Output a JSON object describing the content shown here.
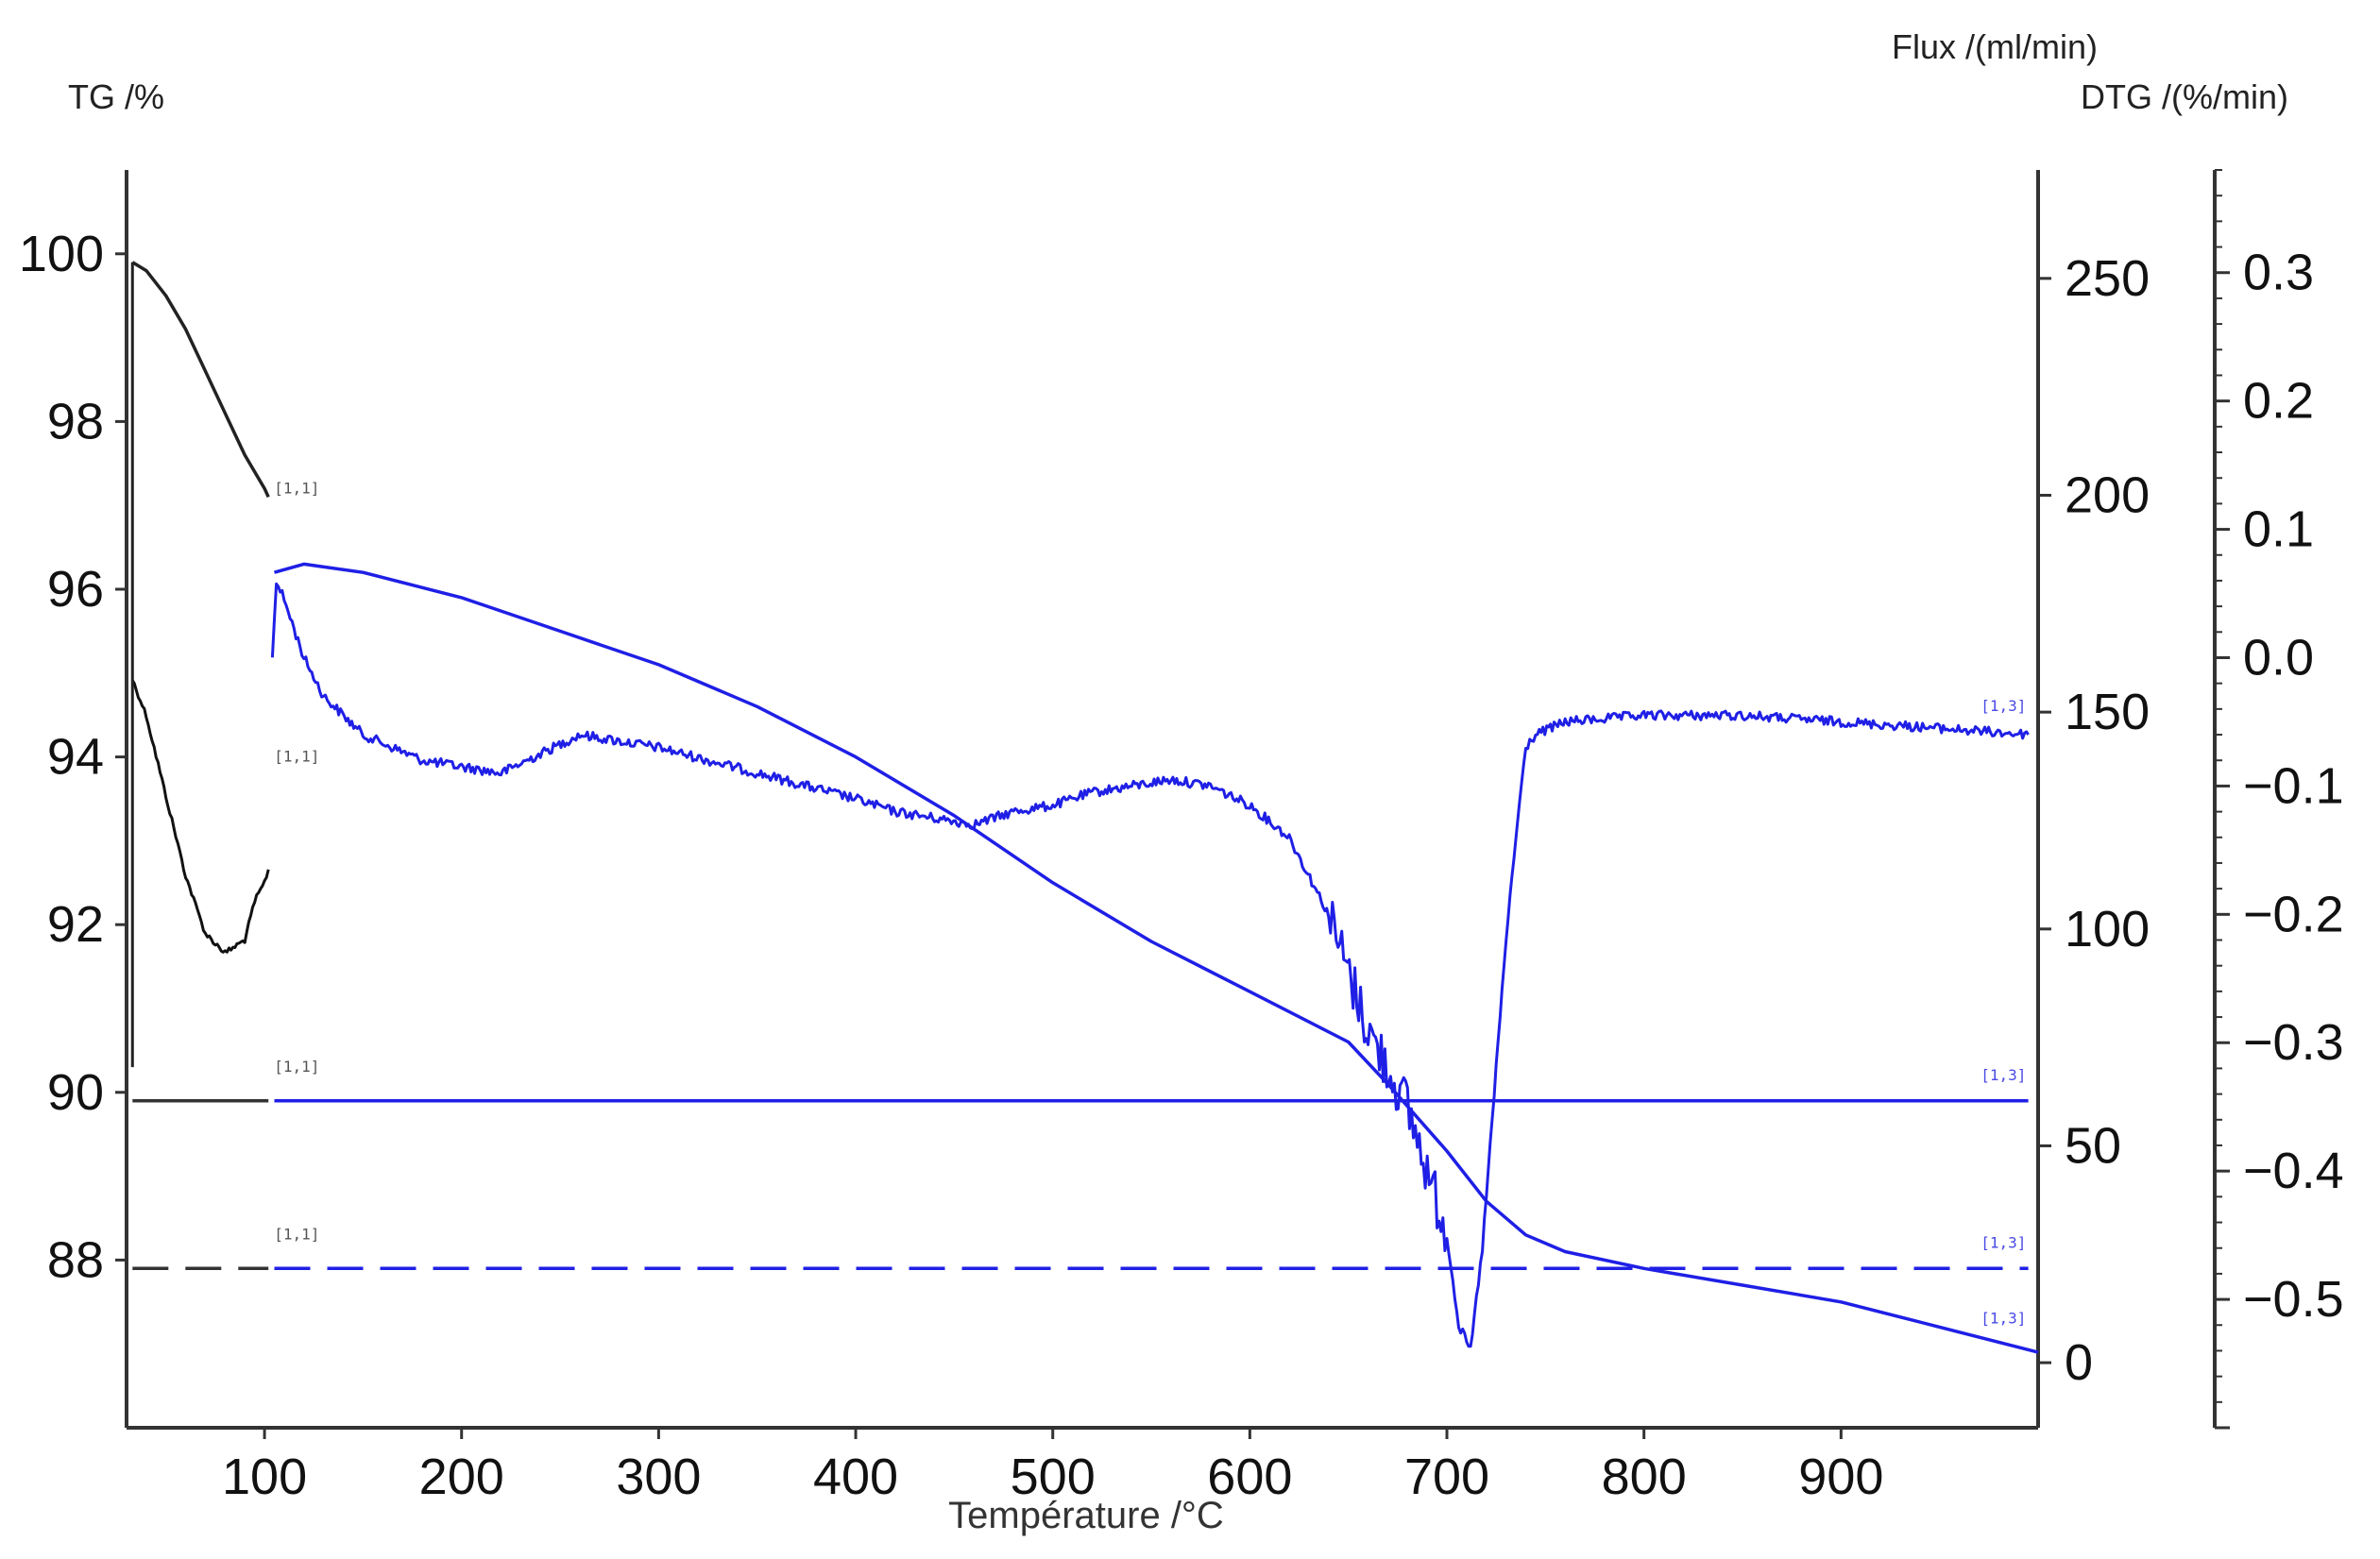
{
  "chart_data": {
    "type": "line",
    "title": "",
    "xlabel": "Température /°C",
    "x_ticks": [
      "100",
      "200",
      "300",
      "400",
      "500",
      "600",
      "700",
      "800",
      "900"
    ],
    "xlim": [
      30,
      1000
    ],
    "axes": {
      "tg": {
        "label": "TG /%",
        "ticks": [
          "100",
          "98",
          "96",
          "94",
          "92",
          "90",
          "88"
        ],
        "ylim": [
          86,
          101
        ]
      },
      "flux": {
        "label": "Flux /(ml/min)",
        "ticks": [
          "250",
          "200",
          "150",
          "100",
          "50",
          "0"
        ],
        "ylim": [
          -15,
          275
        ]
      },
      "dtg": {
        "label": "DTG /(%/min)",
        "ticks": [
          "0.3",
          "0.2",
          "0.1",
          "0.0",
          "−0.1",
          "−0.2",
          "−0.3",
          "−0.4",
          "−0.5"
        ],
        "ylim": [
          -0.6,
          0.38
        ]
      }
    },
    "series": [
      {
        "axis": "tg",
        "color": "#222222",
        "style": "solid",
        "x": [
          33,
          40,
          50,
          60,
          70,
          80,
          90,
          100,
          102
        ],
        "y": [
          99.9,
          99.8,
          99.5,
          99.1,
          98.6,
          98.1,
          97.6,
          97.2,
          97.1
        ]
      },
      {
        "axis": "dtg",
        "color": "#111111",
        "style": "noisy",
        "x": [
          33,
          40,
          50,
          60,
          70,
          80,
          90,
          95,
          100,
          102
        ],
        "y": [
          -0.017,
          -0.045,
          -0.108,
          -0.17,
          -0.215,
          -0.23,
          -0.22,
          -0.19,
          -0.175,
          -0.165
        ]
      },
      {
        "axis": "tg",
        "color": "#333333",
        "style": "solid",
        "x": [
          33,
          102
        ],
        "y": [
          89.9,
          89.9
        ]
      },
      {
        "axis": "tg",
        "color": "#333333",
        "style": "dashed",
        "x": [
          33,
          102
        ],
        "y": [
          87.9,
          87.9
        ]
      },
      {
        "axis": "tg",
        "color": "#1f1fe6",
        "style": "solid",
        "x": [
          105,
          120,
          150,
          200,
          250,
          300,
          350,
          400,
          450,
          500,
          550,
          600,
          650,
          670,
          700,
          720,
          740,
          760,
          800,
          850,
          900,
          950,
          1000
        ],
        "y": [
          96.2,
          96.3,
          96.2,
          95.9,
          95.5,
          95.1,
          94.6,
          94.0,
          93.3,
          92.5,
          91.8,
          91.2,
          90.6,
          90.1,
          89.3,
          88.7,
          88.3,
          88.1,
          87.9,
          87.7,
          87.5,
          87.2,
          86.9
        ]
      },
      {
        "axis": "dtg",
        "color": "#1f1fe6",
        "style": "noisy",
        "x": [
          104,
          106,
          110,
          120,
          130,
          150,
          180,
          200,
          220,
          240,
          260,
          280,
          300,
          350,
          400,
          420,
          440,
          460,
          480,
          500,
          520,
          540,
          560,
          580,
          600,
          620,
          640,
          660,
          680,
          690,
          700,
          706,
          712,
          718,
          722,
          726,
          730,
          735,
          740,
          745,
          760,
          800,
          850,
          900,
          950,
          995
        ],
        "y": [
          0.0,
          0.06,
          0.045,
          0.0,
          -0.03,
          -0.06,
          -0.08,
          -0.085,
          -0.09,
          -0.075,
          -0.06,
          -0.065,
          -0.07,
          -0.09,
          -0.11,
          -0.12,
          -0.125,
          -0.13,
          -0.12,
          -0.115,
          -0.105,
          -0.1,
          -0.095,
          -0.1,
          -0.115,
          -0.14,
          -0.2,
          -0.29,
          -0.35,
          -0.4,
          -0.45,
          -0.52,
          -0.54,
          -0.46,
          -0.38,
          -0.3,
          -0.22,
          -0.14,
          -0.07,
          -0.06,
          -0.05,
          -0.045,
          -0.045,
          -0.05,
          -0.055,
          -0.06
        ]
      },
      {
        "axis": "tg",
        "color": "#1f1fe6",
        "style": "solid",
        "x": [
          105,
          995
        ],
        "y": [
          89.9,
          89.9
        ]
      },
      {
        "axis": "tg",
        "color": "#1f1fe6",
        "style": "dashed",
        "x": [
          105,
          995
        ],
        "y": [
          87.9,
          87.9
        ]
      }
    ],
    "marker_labels": [
      {
        "text": "[1,1]",
        "axis": "tg",
        "x": 102,
        "y": 97.1,
        "color": "#555555"
      },
      {
        "text": "[1,1]",
        "axis": "tg",
        "x": 102,
        "y": 93.9,
        "color": "#555555"
      },
      {
        "text": "[1,1]",
        "axis": "tg",
        "x": 102,
        "y": 90.2,
        "color": "#555555"
      },
      {
        "text": "[1,1]",
        "axis": "tg",
        "x": 102,
        "y": 88.2,
        "color": "#555555"
      },
      {
        "text": "[1,3]",
        "axis": "tg",
        "x": 968,
        "y": 94.5,
        "color": "#4a4ae6"
      },
      {
        "text": "[1,3]",
        "axis": "tg",
        "x": 968,
        "y": 90.1,
        "color": "#4a4ae6"
      },
      {
        "text": "[1,3]",
        "axis": "tg",
        "x": 968,
        "y": 88.1,
        "color": "#4a4ae6"
      },
      {
        "text": "[1,3]",
        "axis": "tg",
        "x": 968,
        "y": 87.2,
        "color": "#4a4ae6"
      }
    ],
    "grid": false,
    "legend": "none"
  }
}
